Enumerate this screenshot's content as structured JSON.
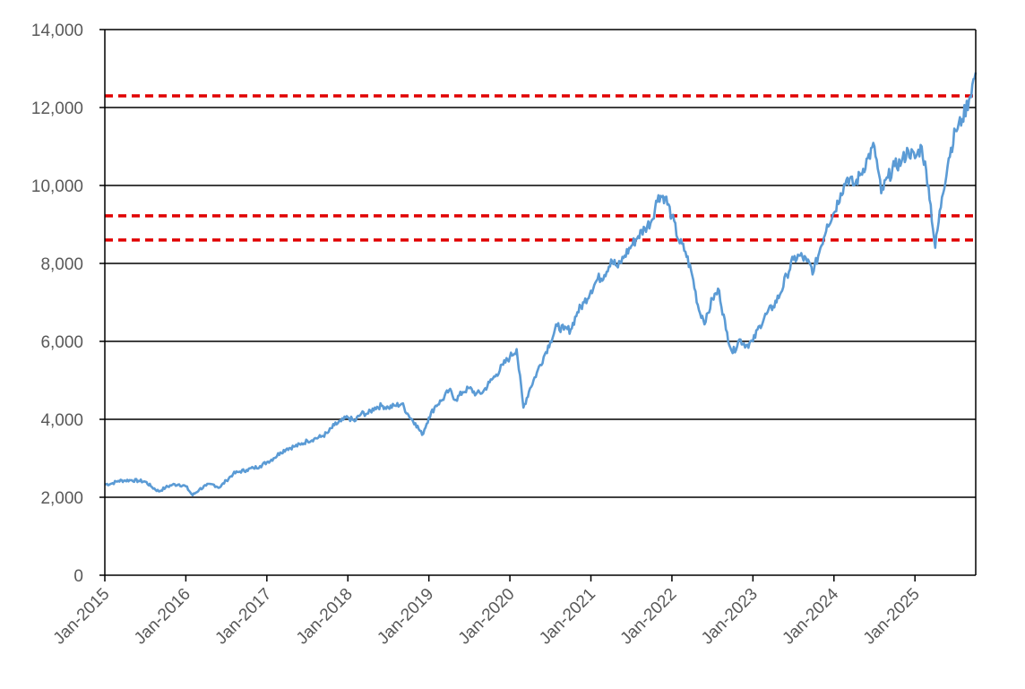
{
  "chart_data": {
    "type": "line",
    "title": "",
    "xlabel": "",
    "ylabel": "",
    "ylim": [
      0,
      14000
    ],
    "xlim": [
      "2015-01",
      "2025-10"
    ],
    "grid": "horizontal",
    "y_ticks": [
      0,
      2000,
      4000,
      6000,
      8000,
      10000,
      12000,
      14000
    ],
    "y_tick_labels": [
      "0",
      "2,000",
      "4,000",
      "6,000",
      "8,000",
      "10,000",
      "12,000",
      "14,000"
    ],
    "x_ticks": [
      "2015-01",
      "2016-01",
      "2017-01",
      "2018-01",
      "2019-01",
      "2020-01",
      "2021-01",
      "2022-01",
      "2023-01",
      "2024-01",
      "2025-01"
    ],
    "x_tick_labels": [
      "Jan-2015",
      "Jan-2016",
      "Jan-2017",
      "Jan-2018",
      "Jan-2019",
      "Jan-2020",
      "Jan-2021",
      "Jan-2022",
      "Jan-2023",
      "Jan-2024",
      "Jan-2025"
    ],
    "series": [
      {
        "color": "#5b9bd5",
        "points": [
          [
            "2015-01",
            2330
          ],
          [
            "2015-02",
            2350
          ],
          [
            "2015-03",
            2420
          ],
          [
            "2015-04",
            2430
          ],
          [
            "2015-05",
            2440
          ],
          [
            "2015-06",
            2420
          ],
          [
            "2015-07",
            2400
          ],
          [
            "2015-08",
            2260
          ],
          [
            "2015-09",
            2150
          ],
          [
            "2015-10",
            2250
          ],
          [
            "2015-11",
            2320
          ],
          [
            "2015-12",
            2330
          ],
          [
            "2016-01",
            2280
          ],
          [
            "2016-02",
            2050
          ],
          [
            "2016-03",
            2200
          ],
          [
            "2016-04",
            2300
          ],
          [
            "2016-05",
            2330
          ],
          [
            "2016-06",
            2250
          ],
          [
            "2016-07",
            2430
          ],
          [
            "2016-08",
            2600
          ],
          [
            "2016-09",
            2660
          ],
          [
            "2016-10",
            2700
          ],
          [
            "2016-11",
            2750
          ],
          [
            "2016-12",
            2800
          ],
          [
            "2017-01",
            2900
          ],
          [
            "2017-02",
            3000
          ],
          [
            "2017-03",
            3150
          ],
          [
            "2017-04",
            3250
          ],
          [
            "2017-05",
            3300
          ],
          [
            "2017-06",
            3350
          ],
          [
            "2017-07",
            3450
          ],
          [
            "2017-08",
            3500
          ],
          [
            "2017-09",
            3550
          ],
          [
            "2017-10",
            3650
          ],
          [
            "2017-11",
            3850
          ],
          [
            "2017-12",
            3950
          ],
          [
            "2018-01",
            4050
          ],
          [
            "2018-02",
            3950
          ],
          [
            "2018-03",
            4150
          ],
          [
            "2018-04",
            4150
          ],
          [
            "2018-05",
            4300
          ],
          [
            "2018-06",
            4350
          ],
          [
            "2018-07",
            4300
          ],
          [
            "2018-08",
            4350
          ],
          [
            "2018-09",
            4400
          ],
          [
            "2018-10",
            4100
          ],
          [
            "2018-11",
            3900
          ],
          [
            "2018-12",
            3600
          ],
          [
            "2019-01",
            4050
          ],
          [
            "2019-02",
            4350
          ],
          [
            "2019-03",
            4500
          ],
          [
            "2019-04",
            4750
          ],
          [
            "2019-05",
            4500
          ],
          [
            "2019-06",
            4700
          ],
          [
            "2019-07",
            4800
          ],
          [
            "2019-08",
            4650
          ],
          [
            "2019-09",
            4700
          ],
          [
            "2019-10",
            4950
          ],
          [
            "2019-11",
            5150
          ],
          [
            "2019-12",
            5400
          ],
          [
            "2020-01",
            5600
          ],
          [
            "2020-02",
            5800
          ],
          [
            "2020-03",
            4300
          ],
          [
            "2020-04",
            4800
          ],
          [
            "2020-05",
            5200
          ],
          [
            "2020-06",
            5600
          ],
          [
            "2020-07",
            6000
          ],
          [
            "2020-08",
            6400
          ],
          [
            "2020-09",
            6300
          ],
          [
            "2020-10",
            6300
          ],
          [
            "2020-11",
            6750
          ],
          [
            "2020-12",
            7000
          ],
          [
            "2021-01",
            7300
          ],
          [
            "2021-02",
            7600
          ],
          [
            "2021-03",
            7700
          ],
          [
            "2021-04",
            8100
          ],
          [
            "2021-05",
            7900
          ],
          [
            "2021-06",
            8200
          ],
          [
            "2021-07",
            8450
          ],
          [
            "2021-08",
            8700
          ],
          [
            "2021-09",
            8900
          ],
          [
            "2021-10",
            9100
          ],
          [
            "2021-11",
            9750
          ],
          [
            "2021-12",
            9700
          ],
          [
            "2022-01",
            9200
          ],
          [
            "2022-02",
            8600
          ],
          [
            "2022-03",
            8300
          ],
          [
            "2022-04",
            7700
          ],
          [
            "2022-05",
            6800
          ],
          [
            "2022-06",
            6500
          ],
          [
            "2022-07",
            7100
          ],
          [
            "2022-08",
            7300
          ],
          [
            "2022-09",
            6300
          ],
          [
            "2022-10",
            5700
          ],
          [
            "2022-11",
            6050
          ],
          [
            "2022-12",
            5900
          ],
          [
            "2023-01",
            6000
          ],
          [
            "2023-02",
            6400
          ],
          [
            "2023-03",
            6700
          ],
          [
            "2023-04",
            6900
          ],
          [
            "2023-05",
            7200
          ],
          [
            "2023-06",
            7700
          ],
          [
            "2023-07",
            8100
          ],
          [
            "2023-08",
            8200
          ],
          [
            "2023-09",
            8050
          ],
          [
            "2023-10",
            7800
          ],
          [
            "2023-11",
            8400
          ],
          [
            "2023-12",
            9000
          ],
          [
            "2024-01",
            9300
          ],
          [
            "2024-02",
            9800
          ],
          [
            "2024-03",
            10200
          ],
          [
            "2024-04",
            10000
          ],
          [
            "2024-05",
            10300
          ],
          [
            "2024-06",
            10700
          ],
          [
            "2024-07",
            11000
          ],
          [
            "2024-08",
            9800
          ],
          [
            "2024-09",
            10200
          ],
          [
            "2024-10",
            10500
          ],
          [
            "2024-11",
            10600
          ],
          [
            "2024-12",
            10900
          ],
          [
            "2025-01",
            10700
          ],
          [
            "2025-02",
            11000
          ],
          [
            "2025-03",
            10000
          ],
          [
            "2025-04",
            8400
          ],
          [
            "2025-05",
            9700
          ],
          [
            "2025-06",
            10700
          ],
          [
            "2025-07",
            11400
          ],
          [
            "2025-08",
            11700
          ],
          [
            "2025-09",
            12200
          ],
          [
            "2025-10",
            12900
          ]
        ]
      }
    ],
    "reference_lines": [
      {
        "y": 12300,
        "color": "#e00000",
        "style": "dashed"
      },
      {
        "y": 9220,
        "color": "#e00000",
        "style": "dashed"
      },
      {
        "y": 8600,
        "color": "#e00000",
        "style": "dashed"
      }
    ]
  }
}
